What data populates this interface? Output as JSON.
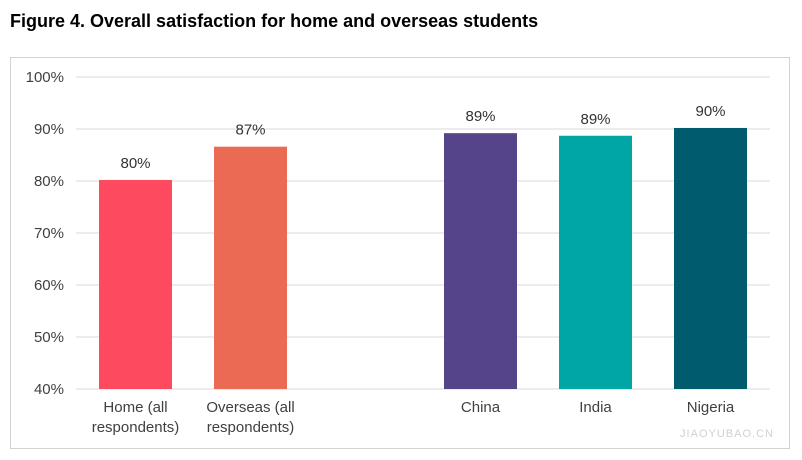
{
  "watermark": "JIAOYUBAO.CN",
  "chart_data": {
    "type": "bar",
    "title": "Figure 4. Overall satisfaction for home and overseas students",
    "xlabel": "",
    "ylabel": "",
    "categories": [
      "Home (all respondents)",
      "Overseas (all respondents)",
      "China",
      "India",
      "Nigeria"
    ],
    "values": [
      80.2,
      86.6,
      89.2,
      88.7,
      90.2
    ],
    "data_labels": [
      "80%",
      "87%",
      "89%",
      "89%",
      "90%"
    ],
    "ylim": [
      40,
      100
    ],
    "yticks": [
      40,
      50,
      60,
      70,
      80,
      90,
      100
    ],
    "ytick_labels": [
      "40%",
      "50%",
      "60%",
      "70%",
      "80%",
      "90%",
      "100%"
    ],
    "bar_colors": [
      "#FE4A5E",
      "#EB6A54",
      "#56448A",
      "#00A6A6",
      "#005B6E"
    ],
    "grid": true
  }
}
